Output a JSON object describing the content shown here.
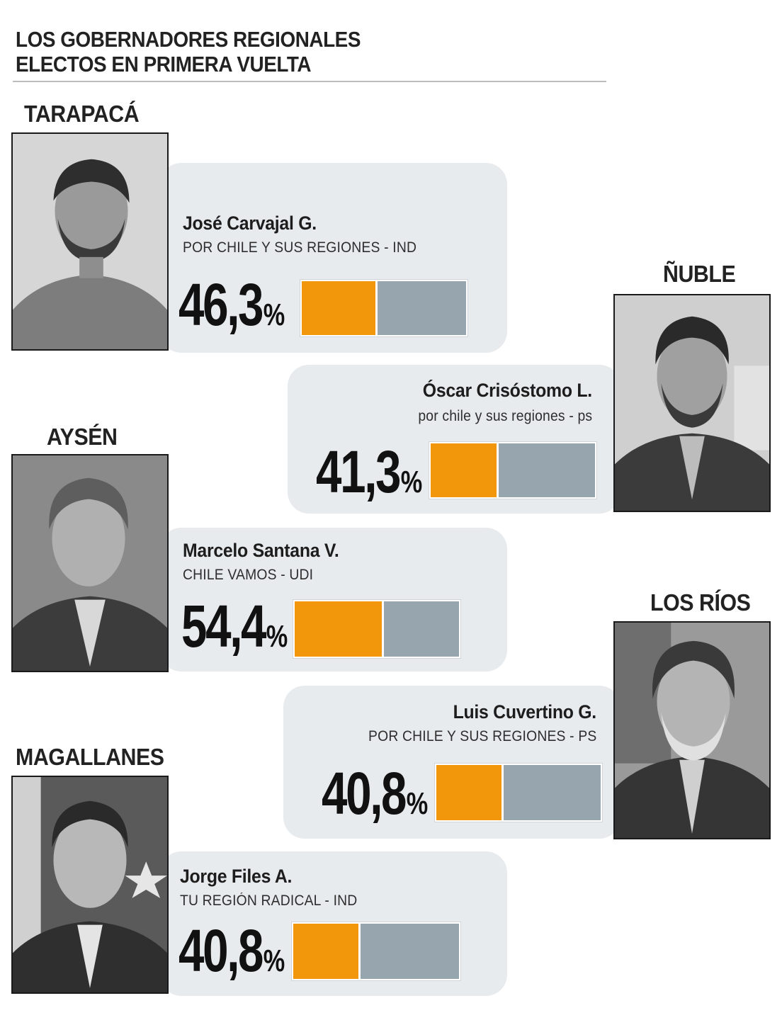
{
  "header": {
    "title_line1": "LOS GOBERNADORES REGIONALES",
    "title_line2": "ELECTOS EN PRIMERA VUELTA"
  },
  "colors": {
    "accent_fill": "#f2960c",
    "bar_rest": "#97a5ae",
    "panel_bg": "#e8ebee"
  },
  "chart_data": {
    "type": "bar",
    "categories": [
      "TARAPACÁ",
      "ÑUBLE",
      "AYSÉN",
      "LOS RÍOS",
      "MAGALLANES"
    ],
    "values": [
      46.3,
      41.3,
      54.4,
      40.8,
      40.8
    ],
    "ylim": [
      0,
      100
    ],
    "candidates": [
      {
        "region": "TARAPACÁ",
        "name": "José Carvajal G.",
        "party": "POR CHILE Y SUS REGIONES - IND",
        "value": 46.3,
        "label": "46,3",
        "unit": "%"
      },
      {
        "region": "ÑUBLE",
        "name": "Óscar Crisóstomo L.",
        "party": "por chile y sus regiones - ps",
        "value": 41.3,
        "label": "41,3",
        "unit": "%"
      },
      {
        "region": "AYSÉN",
        "name": "Marcelo Santana V.",
        "party": "CHILE VAMOS - UDI",
        "value": 54.4,
        "label": "54,4",
        "unit": "%"
      },
      {
        "region": "LOS RÍOS",
        "name": "Luis Cuvertino G.",
        "party": "POR CHILE Y SUS REGIONES - PS",
        "value": 40.8,
        "label": "40,8",
        "unit": "%"
      },
      {
        "region": "MAGALLANES",
        "name": "Jorge Files A.",
        "party": "TU REGIÓN RADICAL - IND",
        "value": 40.8,
        "label": "40,8",
        "unit": "%"
      }
    ]
  }
}
